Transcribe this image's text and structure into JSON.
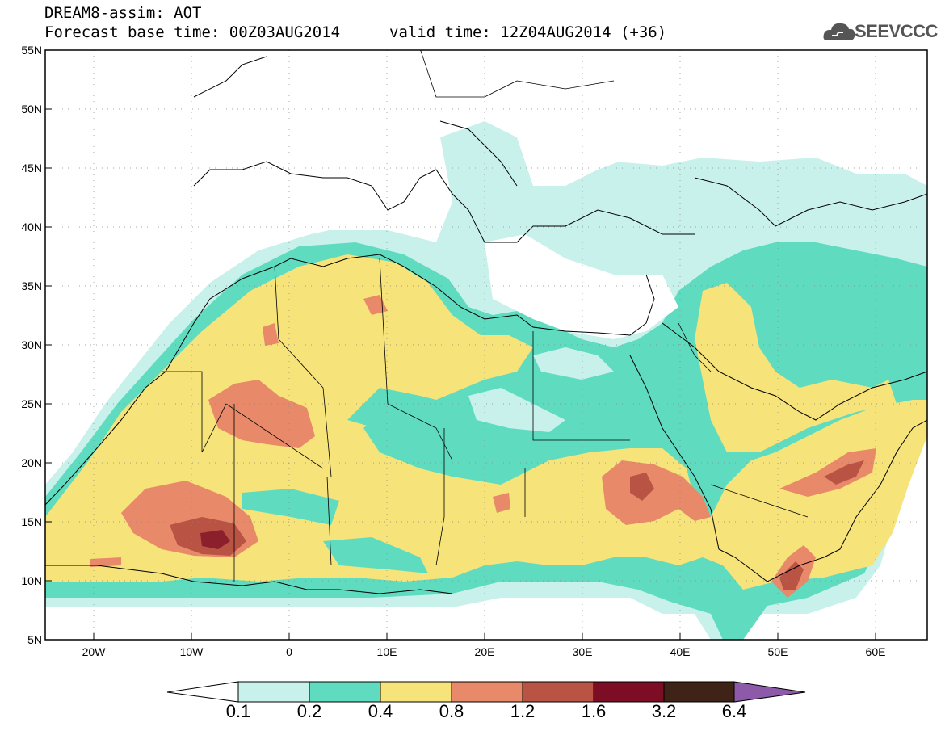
{
  "header": {
    "title_line1": "DREAM8-assim: AOT",
    "title_line2": "Forecast base time: 00Z03AUG2014",
    "valid_time": "valid time: 12Z04AUG2014 (+36)",
    "logo_text": "SEEVCCC"
  },
  "map": {
    "lat_labels": [
      "55N",
      "50N",
      "45N",
      "40N",
      "35N",
      "30N",
      "25N",
      "20N",
      "15N",
      "10N",
      "5N"
    ],
    "lon_labels": [
      "20W",
      "10W",
      "0",
      "10E",
      "20E",
      "30E",
      "40E",
      "50E",
      "60E"
    ],
    "lat_range": [
      5,
      55
    ],
    "lon_range": [
      -25,
      65
    ]
  },
  "colorbar": {
    "labels": [
      "0.1",
      "0.2",
      "0.4",
      "0.8",
      "1.2",
      "1.6",
      "3.2",
      "6.4"
    ],
    "colors": [
      "#ffffff",
      "#c9f1ec",
      "#5fdcc0",
      "#f6e37a",
      "#e8896a",
      "#b95445",
      "#7d0d24",
      "#3f2316",
      "#8c5aa8"
    ]
  },
  "colors": {
    "c01": "#c9f1ec",
    "c02": "#5fdcc0",
    "c04": "#f6e37a",
    "c08": "#e8896a",
    "c12": "#b95445",
    "c16": "#7d0d24"
  }
}
